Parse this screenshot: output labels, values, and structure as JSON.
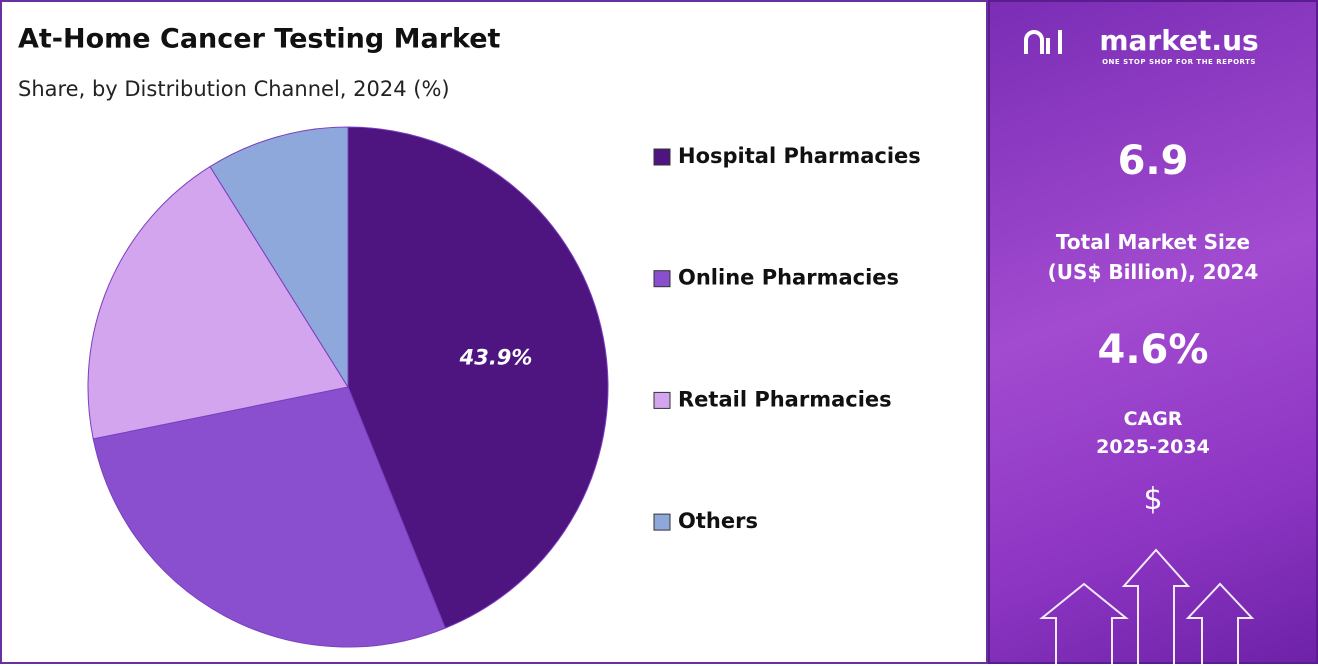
{
  "chart_data": {
    "type": "pie",
    "title": "At-Home Cancer Testing Market",
    "subtitle": "Share, by Distribution Channel, 2024 (%)",
    "categories": [
      "Hospital Pharmacies",
      "Online Pharmacies",
      "Retail Pharmacies",
      "Others"
    ],
    "values": [
      43.9,
      27.9,
      19.3,
      8.9
    ],
    "value_labels": [
      "43.9%",
      null,
      null,
      null
    ],
    "colors": [
      "#4e1580",
      "#8a4fcf",
      "#d4a5ef",
      "#8fa8dc"
    ],
    "legend": "right"
  },
  "sidebar": {
    "brand": "market.us",
    "tagline": "ONE STOP SHOP FOR THE REPORTS",
    "market_size": "6.9",
    "market_size_label": [
      "Total Market Size",
      "(US$ Billion), 2024"
    ],
    "cagr": "4.6%",
    "cagr_label": [
      "CAGR",
      "2025-2034"
    ],
    "currency": "$"
  }
}
